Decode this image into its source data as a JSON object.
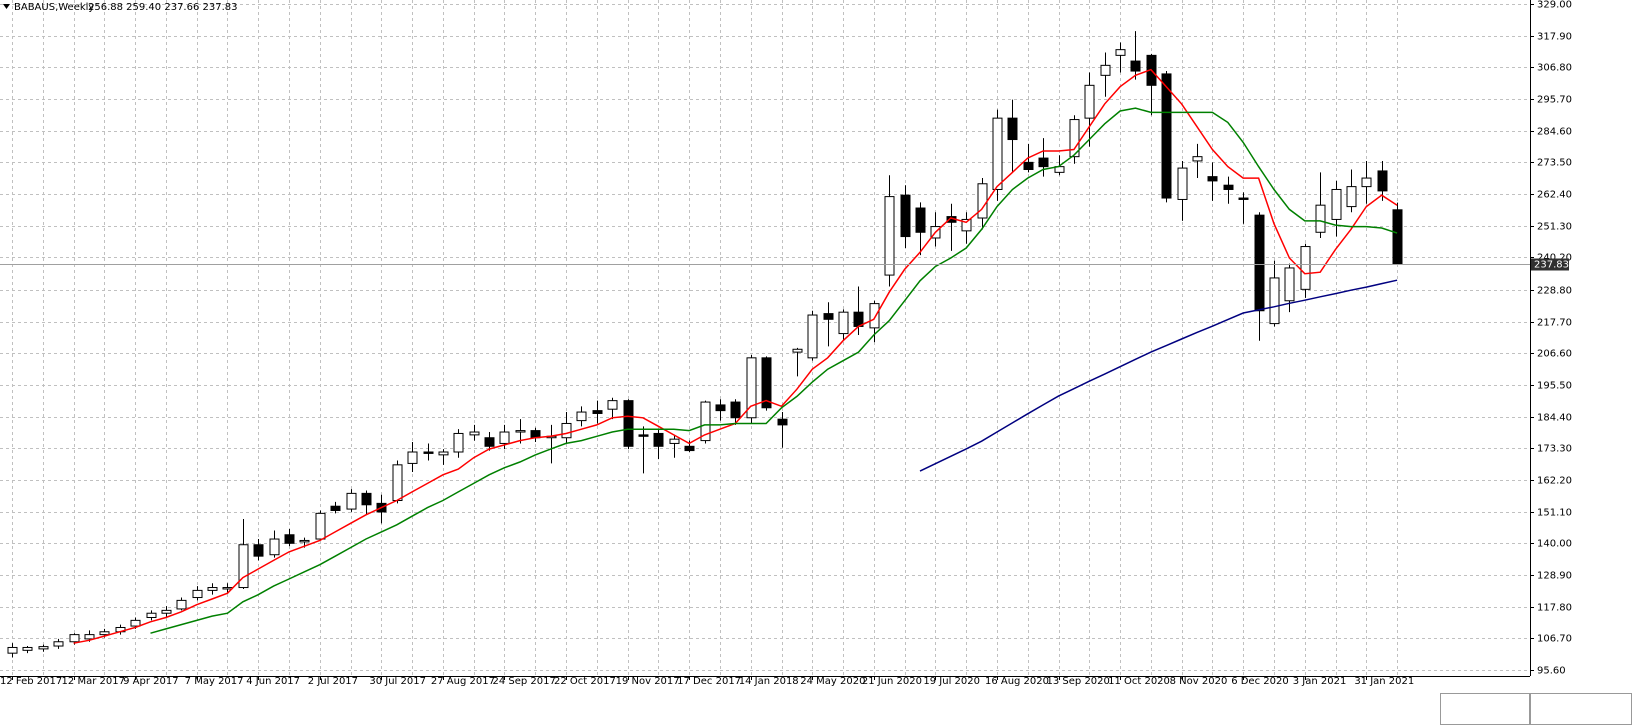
{
  "chart_data": {
    "type": "candlestick",
    "title": "BABAUS,Weekly",
    "header_values": "256.88 259.40 237.66 237.83",
    "categories": [
      "12 Feb 2017",
      null,
      null,
      null,
      "12 Mar 2017",
      null,
      null,
      null,
      "9 Apr 2017",
      null,
      null,
      null,
      "7 May 2017",
      null,
      null,
      null,
      "4 Jun 2017",
      null,
      null,
      null,
      "2 Jul 2017",
      null,
      null,
      null,
      "30 Jul 2017",
      null,
      null,
      null,
      "27 Aug 2017",
      null,
      null,
      null,
      "24 Sep 2017",
      null,
      null,
      null,
      "22 Oct 2017",
      null,
      null,
      null,
      "19 Nov 2017",
      null,
      null,
      null,
      "17 Dec 2017",
      null,
      null,
      null,
      "14 Jan 2018",
      null,
      null,
      null,
      "24 May 2020",
      null,
      null,
      null,
      "21 Jun 2020",
      null,
      null,
      null,
      "19 Jul 2020",
      null,
      null,
      null,
      "16 Aug 2020",
      null,
      null,
      null,
      "13 Sep 2020",
      null,
      null,
      null,
      "11 Oct 2020",
      null,
      null,
      null,
      "8 Nov 2020",
      null,
      null,
      null,
      "6 Dec 2020",
      null,
      null,
      null,
      "3 Jan 2021",
      null,
      null,
      null,
      "31 Jan 2021",
      null,
      null
    ],
    "ohlc": {
      "open": [
        101.5,
        102.5,
        103,
        104,
        105.5,
        106.5,
        108,
        109,
        111,
        114,
        115.5,
        117,
        121,
        123.5,
        124,
        124.5,
        139.5,
        136,
        143,
        140.5,
        141.5,
        153,
        152,
        157.5,
        154,
        155,
        168,
        172,
        171,
        172,
        178,
        177,
        175,
        179,
        179.5,
        177,
        177,
        183,
        186.5,
        187,
        190,
        178,
        178.5,
        175,
        174,
        176,
        188.5,
        189.5,
        184,
        205,
        183.5,
        207,
        205,
        220.5,
        213.5,
        221,
        215.5,
        234,
        262,
        257.5,
        247,
        254.5,
        249.5,
        254,
        264,
        289,
        273.5,
        275,
        270,
        275.5,
        289,
        304,
        311,
        309,
        311,
        304.5,
        260.5,
        274,
        268.5,
        265.5,
        261,
        255,
        217,
        225,
        229,
        249,
        253.5,
        258,
        265,
        270.5,
        256.88
      ],
      "high": [
        105,
        104,
        104.5,
        106.5,
        108.5,
        109.5,
        110,
        111.5,
        114,
        116.5,
        118,
        121,
        125,
        126,
        126,
        148.5,
        141.5,
        144.5,
        145,
        142,
        151.5,
        154.5,
        159,
        158.5,
        157,
        169,
        175.5,
        175,
        173,
        180,
        181.5,
        179,
        181.5,
        183.5,
        180.5,
        181.5,
        186,
        188,
        190,
        191,
        190.5,
        181,
        180,
        178,
        176,
        190,
        190.5,
        190.5,
        206,
        205.5,
        186,
        208.5,
        221.5,
        224.5,
        222,
        230,
        225,
        269,
        265.5,
        259.5,
        256,
        259,
        256,
        268,
        292,
        295.5,
        280,
        282,
        276,
        290,
        305,
        312,
        315.5,
        319.5,
        311.5,
        305.5,
        274,
        280,
        273.5,
        268.5,
        263,
        256,
        239,
        238,
        245,
        270,
        267,
        271,
        274,
        274,
        259.4
      ],
      "low": [
        100,
        101.5,
        102,
        103,
        104.5,
        105.5,
        107,
        108,
        110,
        113,
        114,
        116.5,
        120,
        122,
        122.5,
        124,
        134,
        135,
        139,
        138.5,
        141,
        150.5,
        151,
        150,
        147,
        154,
        165,
        169,
        167.5,
        170,
        176,
        172.5,
        173,
        175,
        175.5,
        168,
        175,
        181,
        182,
        183.5,
        173,
        164.5,
        169.5,
        170,
        172,
        175,
        183,
        181.5,
        182,
        186.5,
        173.5,
        198.5,
        204,
        209,
        211,
        213,
        210.5,
        230,
        243.5,
        241,
        244,
        242.5,
        245,
        250,
        260,
        270,
        270,
        268.5,
        269,
        273,
        279,
        296.5,
        305,
        302.5,
        290,
        259.5,
        253,
        268,
        260,
        259,
        252,
        211,
        216,
        221,
        226,
        247,
        247.5,
        256,
        259,
        260,
        237.66
      ],
      "close": [
        103.5,
        103.5,
        103.8,
        105.5,
        108,
        108,
        109,
        110.5,
        113,
        115.5,
        116.5,
        120,
        123.5,
        124.5,
        124.5,
        139.5,
        135.5,
        141.5,
        140,
        141,
        150.5,
        151.5,
        157.5,
        153.5,
        151,
        167.5,
        172,
        171.5,
        172,
        178.5,
        179,
        174,
        179,
        179.5,
        177,
        177.5,
        182,
        186,
        185.5,
        190,
        174,
        177.5,
        174,
        176.5,
        172.5,
        189.5,
        186.5,
        184,
        205,
        187.5,
        181.5,
        208,
        220,
        218.5,
        221,
        216,
        224,
        261.5,
        247.5,
        249,
        251,
        252.5,
        253.5,
        266,
        289,
        281.5,
        271,
        272,
        272,
        288.5,
        300.5,
        307.5,
        313,
        305.5,
        300.5,
        261,
        271.5,
        275.5,
        267,
        264,
        260.5,
        221.5,
        233,
        236.5,
        244,
        258.5,
        264,
        265,
        268,
        263.5,
        237.83
      ]
    },
    "up_color": "#ffffff",
    "down_color": "#000000",
    "lines": [
      {
        "color": "#ff0000",
        "values": [
          null,
          null,
          null,
          null,
          105,
          106,
          107.5,
          109,
          110.5,
          112.5,
          114,
          116,
          118.5,
          120.5,
          122.5,
          128,
          131,
          134,
          137,
          139,
          141,
          144,
          147,
          150,
          152.5,
          155,
          158,
          161,
          164,
          166,
          170,
          173,
          174.5,
          176,
          177,
          177.5,
          178.5,
          180,
          181.5,
          184,
          184.5,
          184,
          181,
          178,
          175,
          178,
          180,
          182,
          188,
          190,
          188,
          194,
          201,
          205,
          211,
          216,
          218.5,
          228,
          236,
          242,
          249,
          254,
          252.5,
          257,
          265,
          270,
          275,
          277.5,
          277.5,
          278,
          286,
          294,
          300,
          304,
          306,
          300,
          294,
          286,
          278,
          272,
          268,
          268,
          252,
          240,
          234.5,
          235,
          243,
          250,
          258,
          262,
          258.5
        ]
      },
      {
        "color": "#008000",
        "values": [
          null,
          null,
          null,
          null,
          null,
          null,
          null,
          null,
          null,
          108.5,
          110,
          111.5,
          113,
          114.5,
          115.5,
          119.5,
          122,
          125,
          127.5,
          130,
          132.5,
          135.5,
          138.5,
          141.5,
          144,
          146.5,
          149.5,
          152.5,
          155,
          158,
          161,
          164,
          166.5,
          168.5,
          171,
          173,
          175,
          176,
          177.5,
          179,
          180,
          180,
          180,
          180,
          179.5,
          181.5,
          181.5,
          182,
          182,
          182,
          187.5,
          191.5,
          196.5,
          201,
          204,
          207,
          213,
          218,
          225,
          232,
          237,
          240,
          243.5,
          250,
          258,
          264,
          268,
          271,
          272,
          276,
          281.5,
          287,
          291.5,
          292.5,
          291,
          291,
          291,
          291,
          291,
          287.5,
          280.5,
          272,
          264,
          257,
          253,
          253,
          251.5,
          251,
          251,
          250.5,
          248.7
        ]
      },
      {
        "color": "#000080",
        "values": [
          null,
          null,
          null,
          null,
          null,
          null,
          null,
          null,
          null,
          null,
          null,
          null,
          null,
          null,
          null,
          null,
          null,
          null,
          null,
          null,
          null,
          null,
          null,
          null,
          null,
          null,
          null,
          null,
          null,
          null,
          null,
          null,
          null,
          null,
          null,
          null,
          null,
          null,
          null,
          null,
          null,
          null,
          null,
          null,
          null,
          null,
          null,
          null,
          null,
          null,
          null,
          null,
          null,
          null,
          null,
          null,
          null,
          null,
          null,
          165.3,
          167.9,
          170.5,
          173.1,
          175.8,
          179,
          182.2,
          185.4,
          188.5,
          191.6,
          194.2,
          196.8,
          199.3,
          201.9,
          204.5,
          207,
          209.3,
          211.6,
          213.9,
          216.1,
          218.4,
          220.7,
          221.8,
          222.9,
          224.1,
          225.2,
          226.4,
          227.5,
          228.7,
          229.8,
          231,
          232.2
        ]
      }
    ],
    "ylim": [
      93.5,
      330.4
    ],
    "yticks": [
      {
        "value": 95.6,
        "label": "95.60"
      },
      {
        "value": 106.7,
        "label": "106.70"
      },
      {
        "value": 117.8,
        "label": "117.80"
      },
      {
        "value": 128.9,
        "label": "128.90"
      },
      {
        "value": 140,
        "label": "140.00"
      },
      {
        "value": 151.1,
        "label": "151.10"
      },
      {
        "value": 162.2,
        "label": "162.20"
      },
      {
        "value": 173.3,
        "label": "173.30"
      },
      {
        "value": 184.4,
        "label": "184.40"
      },
      {
        "value": 195.5,
        "label": "195.50"
      },
      {
        "value": 206.6,
        "label": "206.60"
      },
      {
        "value": 217.7,
        "label": "217.70"
      },
      {
        "value": 228.8,
        "label": "228.80"
      },
      {
        "value": 240.2,
        "label": "240.20"
      },
      {
        "value": 251.3,
        "label": "251.30"
      },
      {
        "value": 262.4,
        "label": "262.40"
      },
      {
        "value": 273.5,
        "label": "273.50"
      },
      {
        "value": 284.6,
        "label": "284.60"
      },
      {
        "value": 295.7,
        "label": "295.70"
      },
      {
        "value": 306.8,
        "label": "306.80"
      },
      {
        "value": 317.9,
        "label": "317.90"
      },
      {
        "value": 329,
        "label": "329.00"
      }
    ],
    "last_price": {
      "value": 237.83,
      "label": "237.83"
    },
    "grid": true
  }
}
